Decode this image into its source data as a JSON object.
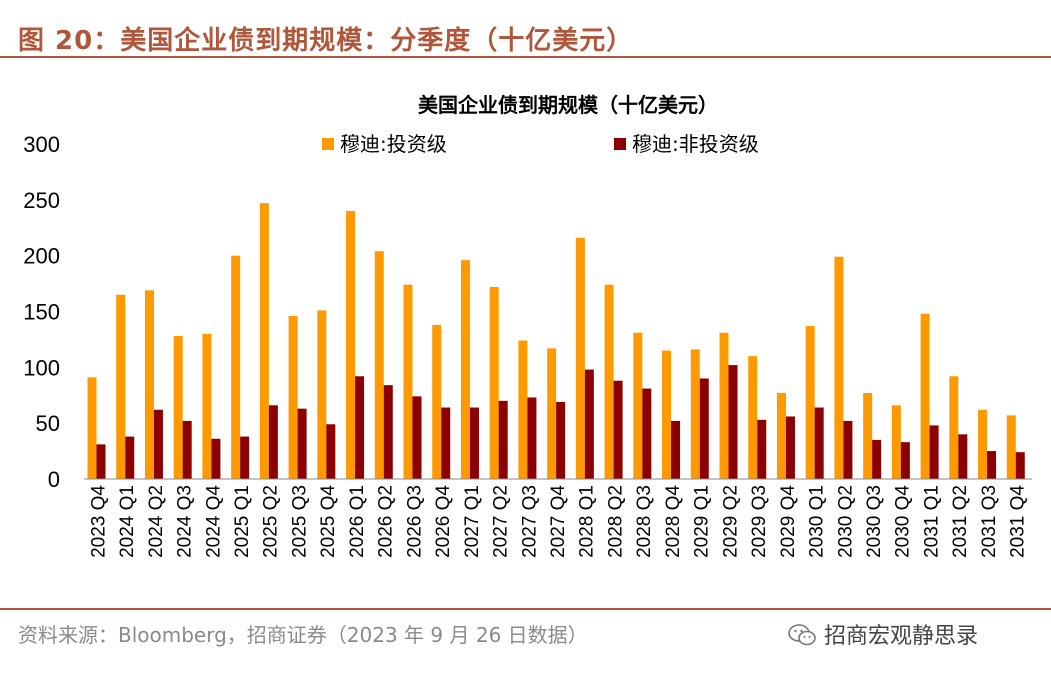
{
  "header": {
    "figure_title": "图 20：美国企业债到期规模：分季度（十亿美元）"
  },
  "footer": {
    "source": "资料来源：Bloomberg，招商证券（2023 年 9 月 26 日数据）",
    "brand": "招商宏观静思录",
    "brand_icon": "wechat-icon"
  },
  "colors": {
    "accent": "#b0563a",
    "investment_grade": "#ff9900",
    "high_yield": "#8b0000"
  },
  "chart_data": {
    "type": "bar",
    "title": "美国企业债到期规模（十亿美元）",
    "xlabel": "",
    "ylabel": "",
    "ylim": [
      0,
      300
    ],
    "yticks": [
      0,
      50,
      100,
      150,
      200,
      250,
      300
    ],
    "grid": false,
    "legend_position": "top",
    "categories": [
      "2023 Q4",
      "2024 Q1",
      "2024 Q2",
      "2024 Q3",
      "2024 Q4",
      "2025 Q1",
      "2025 Q2",
      "2025 Q3",
      "2025 Q4",
      "2026 Q1",
      "2026 Q2",
      "2026 Q3",
      "2026 Q4",
      "2027 Q1",
      "2027 Q2",
      "2027 Q3",
      "2027 Q4",
      "2028 Q1",
      "2028 Q2",
      "2028 Q3",
      "2028 Q4",
      "2029 Q1",
      "2029 Q2",
      "2029 Q3",
      "2029 Q4",
      "2030 Q1",
      "2030 Q2",
      "2030 Q3",
      "2030 Q4",
      "2031 Q1",
      "2031 Q2",
      "2031 Q3",
      "2031 Q4"
    ],
    "series": [
      {
        "name": "穆迪:投资级",
        "color": "#ff9900",
        "values": [
          91,
          165,
          169,
          128,
          130,
          200,
          247,
          146,
          151,
          240,
          204,
          174,
          138,
          196,
          172,
          124,
          117,
          216,
          174,
          131,
          115,
          116,
          131,
          110,
          77,
          137,
          199,
          77,
          66,
          148,
          92,
          62,
          57
        ]
      },
      {
        "name": "穆迪:非投资级",
        "color": "#8b0000",
        "values": [
          31,
          38,
          62,
          52,
          36,
          38,
          66,
          63,
          49,
          92,
          84,
          74,
          64,
          64,
          70,
          73,
          69,
          98,
          88,
          81,
          52,
          90,
          102,
          53,
          56,
          64,
          52,
          35,
          33,
          48,
          40,
          25,
          24
        ]
      }
    ]
  }
}
